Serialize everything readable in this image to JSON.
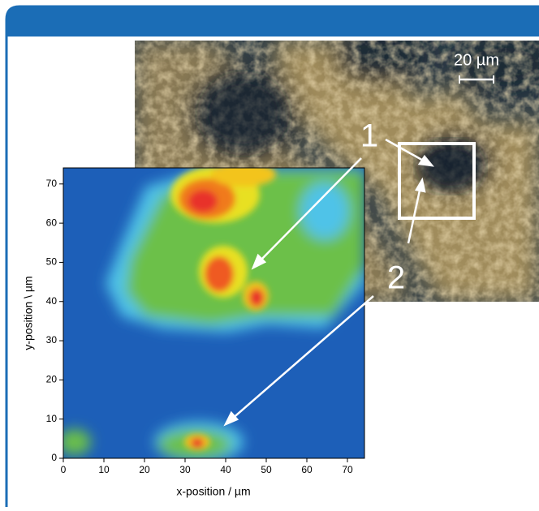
{
  "figure": {
    "scale_bar_label": "20 µm",
    "callouts": [
      "1",
      "2"
    ],
    "heatmap": {
      "x_label": "x-position / µm",
      "y_label": "y-position \\ µm",
      "xlim": [
        0,
        74.2
      ],
      "ylim": [
        0,
        74.1
      ],
      "xticks": [
        0,
        10,
        20,
        30,
        40,
        50,
        60,
        70
      ],
      "yticks": [
        0,
        10,
        20,
        30,
        40,
        50,
        60,
        70
      ]
    }
  }
}
